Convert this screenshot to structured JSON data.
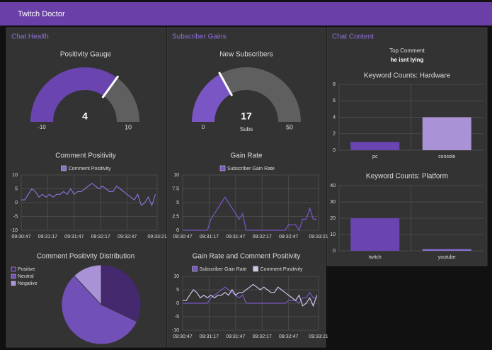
{
  "header": {
    "title": "Twitch Doctor"
  },
  "panels": [
    {
      "title": "Chat Health"
    },
    {
      "title": "Subscriber Gains"
    },
    {
      "title": "Chat Content"
    }
  ],
  "top_comment": {
    "label": "Top Comment",
    "text": "he isnt lying"
  },
  "chart_data": [
    {
      "type": "gauge",
      "title": "Positivity Gauge",
      "value": 4,
      "ylim": [
        -10,
        10
      ],
      "color": "#6a45b0",
      "track_color": "#5f5f5f"
    },
    {
      "type": "line",
      "title": "Comment Positivity",
      "x": [
        34247,
        34251,
        34255,
        34259,
        34263,
        34267,
        34271,
        34275,
        34279,
        34283,
        34287,
        34291,
        34295,
        34299,
        34303,
        34307,
        34311,
        34315,
        34319,
        34323,
        34327,
        34331,
        34335,
        34339,
        34343,
        34347,
        34351,
        34355,
        34359,
        34363,
        34367,
        34371,
        34375,
        34379,
        34383,
        34387,
        34391,
        34395,
        34399
      ],
      "series": [
        {
          "name": "Comment Positivity",
          "color": "#8a6fd1",
          "values": [
            1,
            1,
            3,
            5,
            4,
            2,
            3,
            2,
            3,
            2,
            3,
            3,
            4,
            3,
            5,
            3,
            4,
            4,
            5,
            6,
            7,
            6,
            5,
            6,
            5,
            4,
            4,
            6,
            5,
            4,
            3,
            2,
            1,
            3,
            -1,
            0,
            2,
            -1,
            3
          ]
        }
      ],
      "xlim": [
        34247,
        34401
      ],
      "xticks": [
        {
          "value": 34247,
          "label": "09:30:47"
        },
        {
          "value": 34277,
          "label": "09:31:17"
        },
        {
          "value": 34307,
          "label": "09:31:47"
        },
        {
          "value": 34337,
          "label": "09:32:17"
        },
        {
          "value": 34367,
          "label": "09:32:47"
        },
        {
          "value": 34401,
          "label": "09:33:21"
        }
      ],
      "ylim": [
        -10,
        10
      ],
      "yticks": [
        -10,
        -5,
        0,
        5,
        10
      ],
      "grid": true
    },
    {
      "type": "pie",
      "title": "Comment Positivity Distribution",
      "categories": [
        "Positive",
        "Neutral",
        "Negative"
      ],
      "values": [
        32,
        56,
        12
      ],
      "colors": [
        "#45296f",
        "#7150b8",
        "#a993d6"
      ]
    },
    {
      "type": "gauge",
      "title": "New Subscribers",
      "value": 17,
      "units": "Subs",
      "ylim": [
        0,
        50
      ],
      "color": "#7a56c4",
      "track_color": "#5f5f5f"
    },
    {
      "type": "line",
      "title": "Gain Rate",
      "x": [
        34247,
        34251,
        34255,
        34259,
        34263,
        34267,
        34271,
        34275,
        34279,
        34283,
        34287,
        34291,
        34295,
        34299,
        34303,
        34307,
        34311,
        34315,
        34319,
        34323,
        34327,
        34331,
        34335,
        34339,
        34343,
        34347,
        34351,
        34355,
        34359,
        34363,
        34367,
        34371,
        34375,
        34379,
        34383,
        34387,
        34391,
        34395,
        34399
      ],
      "series": [
        {
          "name": "Subscriber Gain Rate",
          "color": "#7a56c4",
          "values": [
            0,
            0,
            0,
            0,
            0,
            0,
            0,
            0,
            2,
            3,
            4,
            5,
            6,
            5,
            4,
            3,
            2,
            3,
            0,
            0,
            0,
            0,
            0,
            0,
            0,
            0,
            0,
            0,
            0,
            0,
            1,
            1,
            1,
            0,
            2,
            2,
            4,
            2,
            2
          ]
        }
      ],
      "xlim": [
        34247,
        34401
      ],
      "xticks": [
        {
          "value": 34247,
          "label": "09:30:47"
        },
        {
          "value": 34277,
          "label": "09:31:17"
        },
        {
          "value": 34307,
          "label": "09:31:47"
        },
        {
          "value": 34337,
          "label": "09:32:17"
        },
        {
          "value": 34367,
          "label": "09:32:47"
        },
        {
          "value": 34401,
          "label": "09:33:21"
        }
      ],
      "ylim": [
        0,
        10
      ],
      "yticks": [
        0,
        2.5,
        5,
        7.5,
        10
      ],
      "grid": true
    },
    {
      "type": "line",
      "title": "Gain Rate and Comment Positivity",
      "x": [
        34247,
        34251,
        34255,
        34259,
        34263,
        34267,
        34271,
        34275,
        34279,
        34283,
        34287,
        34291,
        34295,
        34299,
        34303,
        34307,
        34311,
        34315,
        34319,
        34323,
        34327,
        34331,
        34335,
        34339,
        34343,
        34347,
        34351,
        34355,
        34359,
        34363,
        34367,
        34371,
        34375,
        34379,
        34383,
        34387,
        34391,
        34395,
        34399
      ],
      "series": [
        {
          "name": "Subscriber Gain Rate",
          "color": "#7a56c4",
          "values": [
            0,
            0,
            0,
            0,
            0,
            0,
            0,
            0,
            2,
            3,
            4,
            5,
            6,
            5,
            4,
            3,
            2,
            3,
            0,
            0,
            0,
            0,
            0,
            0,
            0,
            0,
            0,
            0,
            0,
            0,
            1,
            1,
            1,
            0,
            2,
            2,
            4,
            2,
            2
          ]
        },
        {
          "name": "Comment Positivity",
          "color": "#cfc4ec",
          "values": [
            1,
            1,
            3,
            5,
            4,
            2,
            3,
            2,
            3,
            2,
            3,
            3,
            4,
            3,
            5,
            3,
            4,
            4,
            5,
            6,
            7,
            6,
            5,
            6,
            5,
            4,
            4,
            6,
            5,
            4,
            3,
            2,
            1,
            3,
            -1,
            0,
            2,
            -1,
            3
          ]
        }
      ],
      "xlim": [
        34247,
        34401
      ],
      "xticks": [
        {
          "value": 34247,
          "label": "09:30:47"
        },
        {
          "value": 34277,
          "label": "09:31:17"
        },
        {
          "value": 34307,
          "label": "09:31:47"
        },
        {
          "value": 34337,
          "label": "09:32:17"
        },
        {
          "value": 34367,
          "label": "09:32:47"
        },
        {
          "value": 34401,
          "label": "09:33:21"
        }
      ],
      "ylim": [
        -10,
        10
      ],
      "yticks": [
        -10,
        -5,
        0,
        5,
        10
      ],
      "grid": true
    },
    {
      "type": "bar",
      "title": "Keyword Counts: Hardware",
      "categories": [
        "pc",
        "console"
      ],
      "values": [
        1,
        4
      ],
      "colors": [
        "#6a45b0",
        "#a993d6"
      ],
      "ylim": [
        0,
        8
      ],
      "yticks": [
        0,
        2,
        4,
        6,
        8
      ],
      "grid": true
    },
    {
      "type": "bar",
      "title": "Keyword Counts: Platform",
      "categories": [
        "twitch",
        "youtube"
      ],
      "values": [
        20,
        1
      ],
      "colors": [
        "#6a45b0",
        "#8a6fd1"
      ],
      "ylim": [
        0,
        40
      ],
      "yticks": [
        0,
        10,
        20,
        30,
        40
      ],
      "grid": true
    }
  ]
}
